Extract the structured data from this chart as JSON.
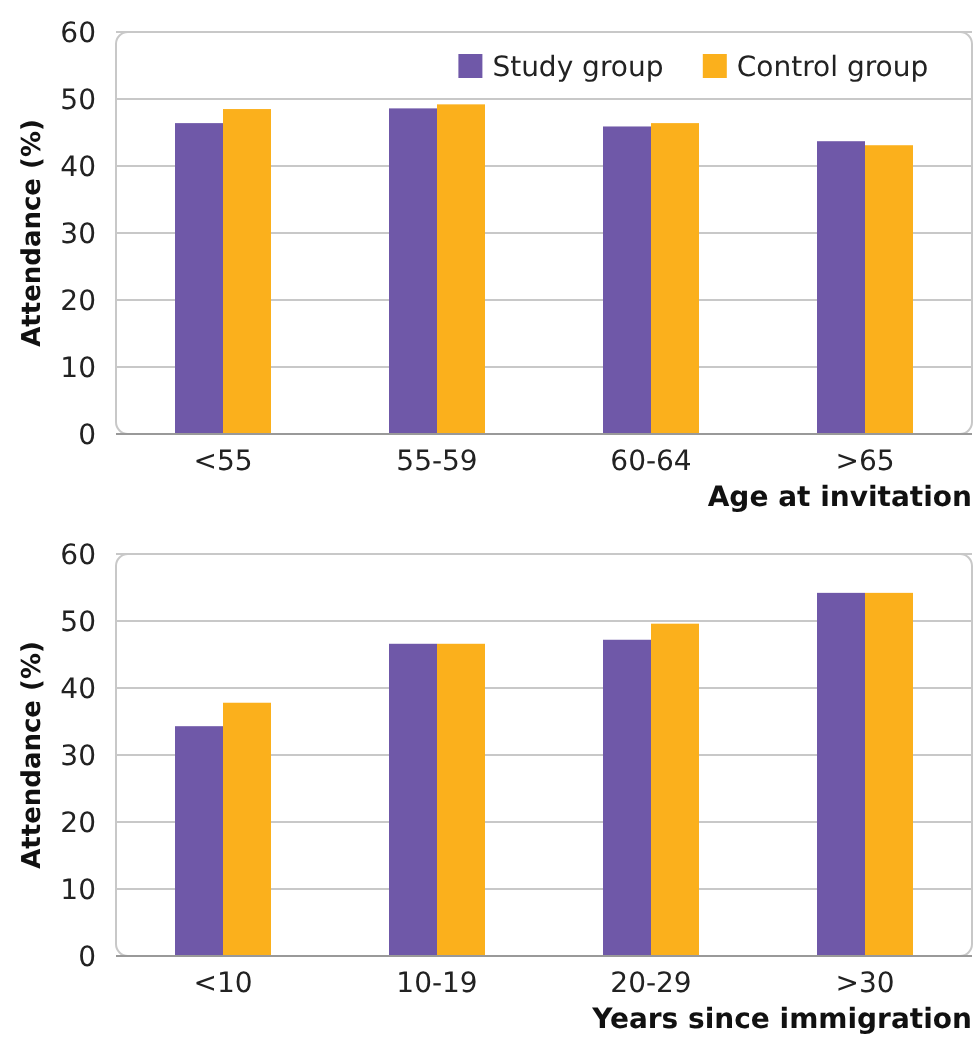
{
  "chart_data": [
    {
      "type": "bar",
      "xlabel": "Age at invitation",
      "ylabel": "Attendance (%)",
      "categories": [
        "<55",
        "55-59",
        "60-64",
        ">65"
      ],
      "series": [
        {
          "name": "Study group",
          "color": "#6f58a8",
          "values": [
            46.4,
            48.6,
            45.9,
            43.7
          ]
        },
        {
          "name": "Control group",
          "color": "#fbb01c",
          "values": [
            48.5,
            49.2,
            46.4,
            43.1
          ]
        }
      ],
      "ylim": [
        0,
        60
      ],
      "yticks": [
        0,
        10,
        20,
        30,
        40,
        50,
        60
      ],
      "grid": "y",
      "legend": "top right"
    },
    {
      "type": "bar",
      "xlabel": "Years since immigration",
      "ylabel": "Attendance (%)",
      "categories": [
        "<10",
        "10-19",
        "20-29",
        ">30"
      ],
      "series": [
        {
          "color": "#6f58a8",
          "values": [
            34.3,
            46.6,
            47.2,
            54.2
          ]
        },
        {
          "color": "#fbb01c",
          "values": [
            37.8,
            46.6,
            49.6,
            54.2
          ]
        }
      ],
      "ylim": [
        0,
        60
      ],
      "yticks": [
        0,
        10,
        20,
        30,
        40,
        50,
        60
      ],
      "grid": "y"
    }
  ]
}
